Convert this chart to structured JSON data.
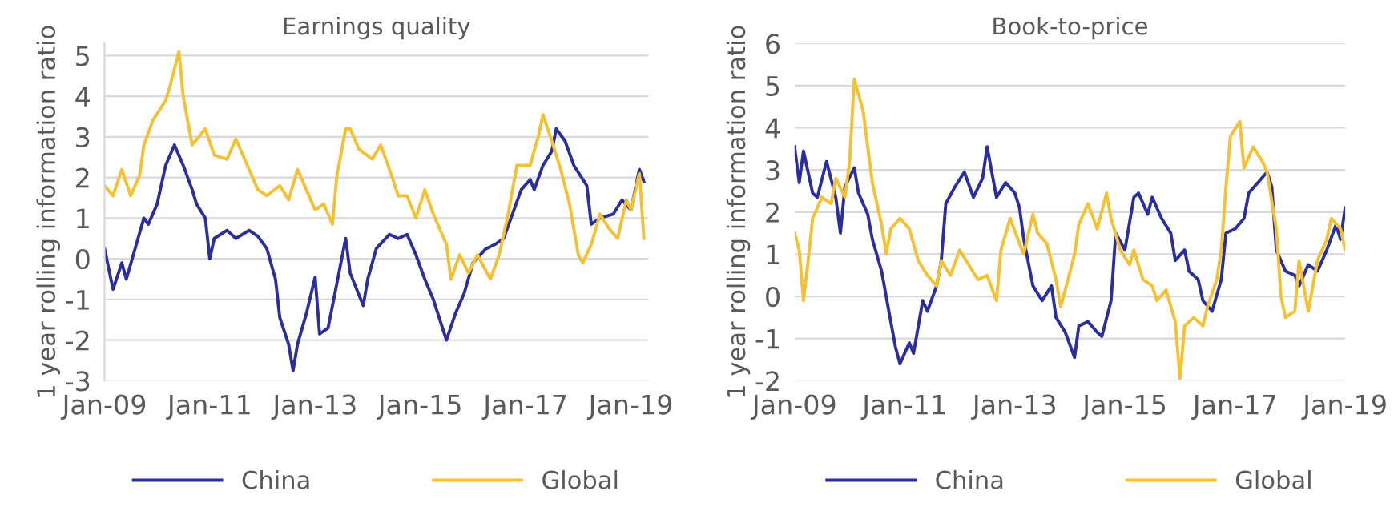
{
  "chart_data": [
    {
      "type": "line",
      "title": "Earnings quality",
      "ylabel": "1 year rolling information ratio",
      "xlim": [
        "2009-01",
        "2019-05"
      ],
      "xticks": [
        {
          "value": "2009-01",
          "label": "Jan-09"
        },
        {
          "value": "2011-01",
          "label": "Jan-11"
        },
        {
          "value": "2013-01",
          "label": "Jan-13"
        },
        {
          "value": "2015-01",
          "label": "Jan-15"
        },
        {
          "value": "2017-01",
          "label": "Jan-17"
        },
        {
          "value": "2019-01",
          "label": "Jan-19"
        }
      ],
      "ylim": [
        -3,
        5.3
      ],
      "yticks": [
        -3,
        -2,
        -1,
        0,
        1,
        2,
        3,
        4,
        5
      ],
      "grid": "y",
      "legend": "bottom",
      "marker": "none",
      "line_style": "solid",
      "series": [
        {
          "name": "China",
          "color": "#2b2f9e",
          "x": [
            "2009-01",
            "2009-03",
            "2009-05",
            "2009-06",
            "2009-08",
            "2009-10",
            "2009-11",
            "2010-01",
            "2010-03",
            "2010-05",
            "2010-07",
            "2010-09",
            "2010-10",
            "2010-12",
            "2011-01",
            "2011-02",
            "2011-05",
            "2011-07",
            "2011-10",
            "2011-12",
            "2012-02",
            "2012-04",
            "2012-05",
            "2012-07",
            "2012-08",
            "2012-09",
            "2012-11",
            "2013-01",
            "2013-02",
            "2013-04",
            "2013-06",
            "2013-08",
            "2013-09",
            "2013-12",
            "2014-01",
            "2014-03",
            "2014-06",
            "2014-08",
            "2014-10",
            "2014-12",
            "2015-02",
            "2015-04",
            "2015-07",
            "2015-09",
            "2015-11",
            "2016-01",
            "2016-04",
            "2016-06",
            "2016-08",
            "2016-10",
            "2016-12",
            "2017-02",
            "2017-03",
            "2017-05",
            "2017-07",
            "2017-08",
            "2017-10",
            "2017-12",
            "2018-03",
            "2018-04",
            "2018-06",
            "2018-09",
            "2018-11",
            "2019-01",
            "2019-03",
            "2019-04"
          ],
          "values": [
            0.25,
            -0.75,
            -0.1,
            -0.5,
            0.25,
            1.0,
            0.85,
            1.35,
            2.3,
            2.8,
            2.3,
            1.7,
            1.35,
            1.0,
            0.0,
            0.5,
            0.7,
            0.5,
            0.7,
            0.55,
            0.25,
            -0.5,
            -1.45,
            -2.1,
            -2.75,
            -2.1,
            -1.35,
            -0.45,
            -1.85,
            -1.7,
            -0.6,
            0.5,
            -0.35,
            -1.15,
            -0.5,
            0.25,
            0.6,
            0.5,
            0.6,
            0.1,
            -0.5,
            -1.0,
            -2.0,
            -1.35,
            -0.85,
            -0.1,
            0.25,
            0.35,
            0.5,
            1.1,
            1.7,
            1.95,
            1.7,
            2.3,
            2.65,
            3.2,
            2.9,
            2.3,
            1.8,
            0.85,
            1.0,
            1.1,
            1.45,
            1.2,
            2.2,
            1.9
          ]
        },
        {
          "name": "Global",
          "color": "#f5c132",
          "x": [
            "2009-01",
            "2009-03",
            "2009-05",
            "2009-07",
            "2009-09",
            "2009-10",
            "2009-12",
            "2010-03",
            "2010-04",
            "2010-06",
            "2010-07",
            "2010-09",
            "2010-12",
            "2011-02",
            "2011-05",
            "2011-07",
            "2011-10",
            "2011-12",
            "2012-02",
            "2012-05",
            "2012-07",
            "2012-09",
            "2012-11",
            "2013-01",
            "2013-03",
            "2013-05",
            "2013-06",
            "2013-08",
            "2013-09",
            "2013-11",
            "2014-02",
            "2014-04",
            "2014-06",
            "2014-08",
            "2014-10",
            "2014-12",
            "2015-02",
            "2015-04",
            "2015-07",
            "2015-08",
            "2015-10",
            "2015-12",
            "2016-02",
            "2016-05",
            "2016-07",
            "2016-09",
            "2016-11",
            "2017-02",
            "2017-04",
            "2017-05",
            "2017-07",
            "2017-09",
            "2017-11",
            "2018-01",
            "2018-02",
            "2018-04",
            "2018-06",
            "2018-08",
            "2018-10",
            "2018-12",
            "2019-01",
            "2019-03",
            "2019-04"
          ],
          "values": [
            1.8,
            1.55,
            2.2,
            1.55,
            2.05,
            2.8,
            3.4,
            3.9,
            4.25,
            5.1,
            4.0,
            2.8,
            3.2,
            2.55,
            2.45,
            2.95,
            2.2,
            1.7,
            1.55,
            1.8,
            1.45,
            2.2,
            1.7,
            1.2,
            1.35,
            0.85,
            2.05,
            3.2,
            3.2,
            2.7,
            2.45,
            2.8,
            2.2,
            1.55,
            1.55,
            1.0,
            1.7,
            1.1,
            0.35,
            -0.5,
            0.1,
            -0.35,
            0.1,
            -0.5,
            0.1,
            1.1,
            2.3,
            2.3,
            3.05,
            3.55,
            2.9,
            2.2,
            1.35,
            0.1,
            -0.1,
            0.35,
            1.1,
            0.75,
            0.5,
            1.45,
            1.2,
            2.1,
            0.5
          ]
        }
      ]
    },
    {
      "type": "line",
      "title": "Book-to-price",
      "ylabel": "1 year rolling information ratio",
      "xlim": [
        "2009-01",
        "2019-01"
      ],
      "xticks": [
        {
          "value": "2009-01",
          "label": "Jan-09"
        },
        {
          "value": "2011-01",
          "label": "Jan-11"
        },
        {
          "value": "2013-01",
          "label": "Jan-13"
        },
        {
          "value": "2015-01",
          "label": "Jan-15"
        },
        {
          "value": "2017-01",
          "label": "Jan-17"
        },
        {
          "value": "2019-01",
          "label": "Jan-19"
        }
      ],
      "ylim": [
        -2,
        6
      ],
      "yticks": [
        -2,
        -1,
        0,
        1,
        2,
        3,
        4,
        5,
        6
      ],
      "grid": "y",
      "legend": "bottom",
      "marker": "none",
      "line_style": "solid",
      "series": [
        {
          "name": "China",
          "color": "#2b2f9e",
          "x": [
            "2009-01",
            "2009-02",
            "2009-03",
            "2009-05",
            "2009-06",
            "2009-08",
            "2009-10",
            "2009-11",
            "2009-12",
            "2010-02",
            "2010-03",
            "2010-05",
            "2010-06",
            "2010-08",
            "2010-10",
            "2010-11",
            "2010-12",
            "2011-02",
            "2011-03",
            "2011-05",
            "2011-06",
            "2011-08",
            "2011-09",
            "2011-10",
            "2011-12",
            "2012-02",
            "2012-04",
            "2012-06",
            "2012-07",
            "2012-09",
            "2012-11",
            "2013-01",
            "2013-02",
            "2013-03",
            "2013-05",
            "2013-07",
            "2013-09",
            "2013-10",
            "2013-12",
            "2014-02",
            "2014-03",
            "2014-05",
            "2014-07",
            "2014-08",
            "2014-10",
            "2014-11",
            "2015-01",
            "2015-03",
            "2015-04",
            "2015-06",
            "2015-07",
            "2015-09",
            "2015-11",
            "2015-12",
            "2016-02",
            "2016-03",
            "2016-05",
            "2016-06",
            "2016-08",
            "2016-10",
            "2016-11",
            "2017-01",
            "2017-03",
            "2017-04",
            "2017-06",
            "2017-08",
            "2017-09",
            "2017-10",
            "2017-12",
            "2018-02",
            "2018-03",
            "2018-05",
            "2018-07",
            "2018-09",
            "2018-11",
            "2018-12",
            "2019-01"
          ],
          "values": [
            3.55,
            2.7,
            3.45,
            2.45,
            2.35,
            3.2,
            2.35,
            1.5,
            2.6,
            3.05,
            2.45,
            1.95,
            1.35,
            0.6,
            -0.6,
            -1.2,
            -1.6,
            -1.1,
            -1.35,
            -0.1,
            -0.35,
            0.25,
            0.85,
            2.2,
            2.6,
            2.95,
            2.35,
            2.8,
            3.55,
            2.35,
            2.7,
            2.45,
            2.1,
            1.35,
            0.25,
            -0.1,
            0.25,
            -0.5,
            -0.85,
            -1.45,
            -0.7,
            -0.6,
            -0.85,
            -0.95,
            -0.1,
            1.5,
            1.1,
            2.35,
            2.45,
            1.95,
            2.35,
            1.85,
            1.5,
            0.85,
            1.1,
            0.6,
            0.4,
            -0.1,
            -0.35,
            0.4,
            1.5,
            1.6,
            1.85,
            2.45,
            2.7,
            2.95,
            2.6,
            1.1,
            0.6,
            0.5,
            0.25,
            0.75,
            0.6,
            1.1,
            1.7,
            1.35,
            2.1
          ]
        },
        {
          "name": "Global",
          "color": "#f5c132",
          "x": [
            "2009-01",
            "2009-02",
            "2009-03",
            "2009-04",
            "2009-05",
            "2009-07",
            "2009-09",
            "2009-10",
            "2009-12",
            "2010-01",
            "2010-02",
            "2010-04",
            "2010-05",
            "2010-06",
            "2010-08",
            "2010-09",
            "2010-10",
            "2010-12",
            "2011-02",
            "2011-04",
            "2011-06",
            "2011-08",
            "2011-09",
            "2011-11",
            "2012-01",
            "2012-03",
            "2012-05",
            "2012-07",
            "2012-09",
            "2012-10",
            "2012-12",
            "2013-02",
            "2013-03",
            "2013-05",
            "2013-06",
            "2013-08",
            "2013-10",
            "2013-11",
            "2014-02",
            "2014-03",
            "2014-05",
            "2014-07",
            "2014-09",
            "2014-10",
            "2014-12",
            "2015-02",
            "2015-03",
            "2015-05",
            "2015-07",
            "2015-08",
            "2015-10",
            "2015-12",
            "2016-01",
            "2016-02",
            "2016-04",
            "2016-06",
            "2016-07",
            "2016-09",
            "2016-10",
            "2016-11",
            "2016-12",
            "2017-02",
            "2017-03",
            "2017-05",
            "2017-07",
            "2017-08",
            "2017-10",
            "2017-11",
            "2017-12",
            "2018-02",
            "2018-03",
            "2018-05",
            "2018-07",
            "2018-09",
            "2018-10",
            "2018-12",
            "2019-01"
          ],
          "values": [
            1.5,
            1.1,
            -0.1,
            0.85,
            1.85,
            2.35,
            2.2,
            2.8,
            2.35,
            3.2,
            5.15,
            4.4,
            3.55,
            2.7,
            1.7,
            1.0,
            1.6,
            1.85,
            1.6,
            0.85,
            0.5,
            0.25,
            0.85,
            0.5,
            1.1,
            0.75,
            0.4,
            0.5,
            -0.1,
            1.1,
            1.85,
            1.25,
            1.0,
            1.95,
            1.5,
            1.25,
            0.4,
            -0.25,
            1.0,
            1.7,
            2.2,
            1.6,
            2.45,
            1.85,
            1.1,
            0.75,
            1.1,
            0.4,
            0.25,
            -0.1,
            0.15,
            -0.6,
            -1.95,
            -0.7,
            -0.5,
            -0.7,
            -0.25,
            0.4,
            1.1,
            2.6,
            3.8,
            4.15,
            3.05,
            3.55,
            3.2,
            2.95,
            1.6,
            0.0,
            -0.5,
            -0.35,
            0.85,
            -0.35,
            0.85,
            1.35,
            1.85,
            1.6,
            1.1
          ]
        }
      ]
    }
  ]
}
